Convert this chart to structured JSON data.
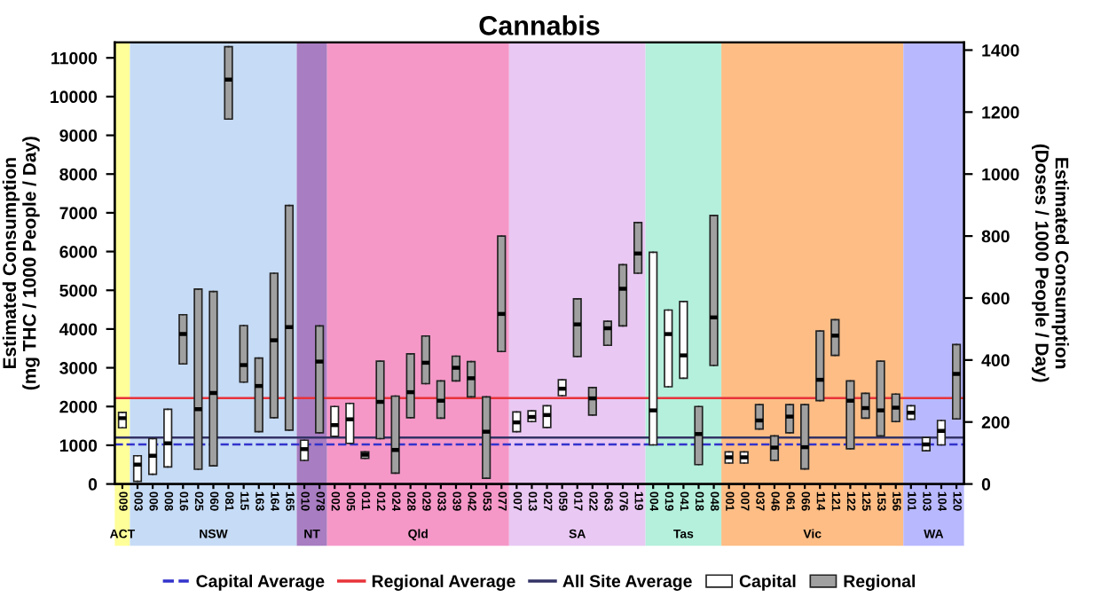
{
  "chart_data": {
    "type": "box",
    "title": "Cannabis",
    "ylabel": "Estimated Consumption\n(mg THC / 1000 People / Day)",
    "y2label": "Estimated Consumption\n(Doses / 1000 People / Day)",
    "categories": [
      "009",
      "003",
      "006",
      "008",
      "016",
      "025",
      "060",
      "081",
      "115",
      "163",
      "164",
      "165",
      "010",
      "078",
      "002",
      "005",
      "011",
      "012",
      "024",
      "028",
      "029",
      "033",
      "039",
      "042",
      "053",
      "077",
      "007",
      "013",
      "027",
      "059",
      "017",
      "022",
      "063",
      "076",
      "119",
      "004",
      "019",
      "041",
      "018",
      "048",
      "001",
      "007",
      "037",
      "046",
      "061",
      "066",
      "114",
      "121",
      "122",
      "125",
      "153",
      "156",
      "101",
      "103",
      "104",
      "120"
    ],
    "ylim": [
      0,
      11400
    ],
    "yticks": [
      0,
      1000,
      2000,
      3000,
      4000,
      5000,
      6000,
      7000,
      8000,
      9000,
      10000,
      11000
    ],
    "y2lim": [
      0,
      1425
    ],
    "y2ticks": [
      0,
      200,
      400,
      600,
      800,
      1000,
      1200,
      1400
    ],
    "grid": false,
    "legend": "bottom",
    "series": [
      {
        "name": "Capital",
        "color": "#ffffff",
        "boxes": [
          {
            "low": 1450,
            "q1": 1450,
            "median": 1700,
            "q3": 1850,
            "high": 1850
          },
          {
            "low": 70,
            "q1": 70,
            "median": 500,
            "q3": 730,
            "high": 730
          },
          {
            "low": 250,
            "q1": 250,
            "median": 730,
            "q3": 1170,
            "high": 1170
          },
          {
            "low": 440,
            "q1": 440,
            "median": 1050,
            "q3": 1930,
            "high": 1930
          },
          null,
          null,
          null,
          null,
          null,
          null,
          null,
          null,
          {
            "low": 610,
            "q1": 610,
            "median": 900,
            "q3": 1130,
            "high": 1130
          },
          null,
          {
            "low": 1230,
            "q1": 1230,
            "median": 1520,
            "q3": 2000,
            "high": 2000
          },
          {
            "low": 1050,
            "q1": 1050,
            "median": 1670,
            "q3": 2080,
            "high": 2080
          },
          null,
          null,
          null,
          null,
          null,
          null,
          null,
          null,
          null,
          null,
          {
            "low": 1350,
            "q1": 1350,
            "median": 1590,
            "q3": 1860,
            "high": 1860
          },
          {
            "low": 1610,
            "q1": 1610,
            "median": 1730,
            "q3": 1890,
            "high": 1890
          },
          {
            "low": 1460,
            "q1": 1460,
            "median": 1780,
            "q3": 2020,
            "high": 2020
          },
          {
            "low": 2280,
            "q1": 2280,
            "median": 2460,
            "q3": 2690,
            "high": 2690
          },
          null,
          null,
          null,
          null,
          null,
          {
            "low": 1010,
            "q1": 1010,
            "median": 1900,
            "q3": 5980,
            "high": 5980
          },
          {
            "low": 2510,
            "q1": 2510,
            "median": 3870,
            "q3": 4490,
            "high": 4490
          },
          {
            "low": 2730,
            "q1": 2730,
            "median": 3320,
            "q3": 4710,
            "high": 4710
          },
          null,
          null,
          {
            "low": 540,
            "q1": 540,
            "median": 690,
            "q3": 830,
            "high": 830
          },
          {
            "low": 540,
            "q1": 540,
            "median": 690,
            "q3": 830,
            "high": 830
          },
          null,
          null,
          null,
          null,
          null,
          null,
          null,
          null,
          null,
          null,
          {
            "low": 1670,
            "q1": 1670,
            "median": 1840,
            "q3": 2020,
            "high": 2020
          },
          {
            "low": 860,
            "q1": 860,
            "median": 1020,
            "q3": 1200,
            "high": 1200
          },
          {
            "low": 1010,
            "q1": 1010,
            "median": 1370,
            "q3": 1640,
            "high": 1640
          },
          null
        ]
      },
      {
        "name": "Regional",
        "color": "#a0a0a0",
        "boxes": [
          null,
          null,
          null,
          null,
          {
            "low": 3100,
            "q1": 3100,
            "median": 3870,
            "q3": 4370,
            "high": 4370
          },
          {
            "low": 380,
            "q1": 380,
            "median": 1930,
            "q3": 5030,
            "high": 5030
          },
          {
            "low": 470,
            "q1": 470,
            "median": 2350,
            "q3": 4970,
            "high": 4970
          },
          {
            "low": 9420,
            "q1": 9420,
            "median": 10440,
            "q3": 11290,
            "high": 11290
          },
          {
            "low": 2630,
            "q1": 2630,
            "median": 3070,
            "q3": 4090,
            "high": 4090
          },
          {
            "low": 1350,
            "q1": 1350,
            "median": 2530,
            "q3": 3250,
            "high": 3250
          },
          {
            "low": 1710,
            "q1": 1710,
            "median": 3710,
            "q3": 5440,
            "high": 5440
          },
          {
            "low": 1390,
            "q1": 1390,
            "median": 4050,
            "q3": 7190,
            "high": 7190
          },
          null,
          {
            "low": 1320,
            "q1": 1320,
            "median": 3160,
            "q3": 4080,
            "high": 4080
          },
          null,
          null,
          {
            "low": 660,
            "q1": 660,
            "median": 760,
            "q3": 830,
            "high": 830
          },
          {
            "low": 1170,
            "q1": 1170,
            "median": 2120,
            "q3": 3170,
            "high": 3170
          },
          {
            "low": 280,
            "q1": 280,
            "median": 880,
            "q3": 2270,
            "high": 2270
          },
          {
            "low": 1710,
            "q1": 1710,
            "median": 2370,
            "q3": 3360,
            "high": 3360
          },
          {
            "low": 2590,
            "q1": 2590,
            "median": 3130,
            "q3": 3820,
            "high": 3820
          },
          {
            "low": 1700,
            "q1": 1700,
            "median": 2150,
            "q3": 2660,
            "high": 2660
          },
          {
            "low": 2660,
            "q1": 2660,
            "median": 3000,
            "q3": 3300,
            "high": 3300
          },
          {
            "low": 2250,
            "q1": 2250,
            "median": 2730,
            "q3": 3160,
            "high": 3160
          },
          {
            "low": 150,
            "q1": 150,
            "median": 1350,
            "q3": 2250,
            "high": 2250
          },
          {
            "low": 3420,
            "q1": 3420,
            "median": 4390,
            "q3": 6400,
            "high": 6400
          },
          null,
          null,
          null,
          null,
          {
            "low": 3290,
            "q1": 3290,
            "median": 4120,
            "q3": 4780,
            "high": 4780
          },
          {
            "low": 1780,
            "q1": 1780,
            "median": 2210,
            "q3": 2490,
            "high": 2490
          },
          {
            "low": 3580,
            "q1": 3580,
            "median": 4020,
            "q3": 4200,
            "high": 4200
          },
          {
            "low": 4080,
            "q1": 4080,
            "median": 5040,
            "q3": 5660,
            "high": 5660
          },
          {
            "low": 5440,
            "q1": 5440,
            "median": 5950,
            "q3": 6750,
            "high": 6750
          },
          null,
          null,
          null,
          {
            "low": 500,
            "q1": 500,
            "median": 1290,
            "q3": 2000,
            "high": 2000
          },
          {
            "low": 3060,
            "q1": 3060,
            "median": 4300,
            "q3": 6930,
            "high": 6930
          },
          null,
          null,
          {
            "low": 1420,
            "q1": 1420,
            "median": 1640,
            "q3": 2050,
            "high": 2050
          },
          {
            "low": 610,
            "q1": 610,
            "median": 940,
            "q3": 1240,
            "high": 1240
          },
          {
            "low": 1320,
            "q1": 1320,
            "median": 1740,
            "q3": 2050,
            "high": 2050
          },
          {
            "low": 390,
            "q1": 390,
            "median": 950,
            "q3": 2050,
            "high": 2050
          },
          {
            "low": 2150,
            "q1": 2150,
            "median": 2690,
            "q3": 3950,
            "high": 3950
          },
          {
            "low": 3320,
            "q1": 3320,
            "median": 3830,
            "q3": 4240,
            "high": 4240
          },
          {
            "low": 910,
            "q1": 910,
            "median": 2150,
            "q3": 2660,
            "high": 2660
          },
          {
            "low": 1700,
            "q1": 1700,
            "median": 1960,
            "q3": 2340,
            "high": 2340
          },
          {
            "low": 1240,
            "q1": 1240,
            "median": 1900,
            "q3": 3170,
            "high": 3170
          },
          {
            "low": 1610,
            "q1": 1610,
            "median": 1970,
            "q3": 2320,
            "high": 2320
          },
          null,
          null,
          null,
          {
            "low": 1680,
            "q1": 1680,
            "median": 2840,
            "q3": 3600,
            "high": 3600
          }
        ]
      }
    ],
    "ref_lines": [
      {
        "axis": "y",
        "value": 1020,
        "label": "Capital Average",
        "color": "#3333cc",
        "line_style": "dashed"
      },
      {
        "axis": "y",
        "value": 2220,
        "label": "Regional Average",
        "color": "#e8333a",
        "line_style": "solid"
      },
      {
        "axis": "y",
        "value": 1200,
        "label": "All Site Average",
        "color": "#333366",
        "line_style": "solid"
      }
    ],
    "bands": [
      {
        "axis": "x",
        "from": "009",
        "to": "009",
        "label": "ACT",
        "color": "#ffff99"
      },
      {
        "axis": "x",
        "from": "003",
        "to": "165",
        "label": "NSW",
        "color": "#c6dbf5"
      },
      {
        "axis": "x",
        "from": "010",
        "to": "078",
        "label": "NT",
        "color": "#a87dc1"
      },
      {
        "axis": "x",
        "from": "002",
        "to": "077",
        "label": "Qld",
        "color": "#f598c8"
      },
      {
        "axis": "x",
        "from": "007",
        "to": "119",
        "label": "SA",
        "color": "#e9c8f3"
      },
      {
        "axis": "x",
        "from": "004",
        "to": "048",
        "label": "Tas",
        "color": "#b4f0dc"
      },
      {
        "axis": "x",
        "from": "001",
        "to": "156",
        "label": "Vic",
        "color": "#fdbd85"
      },
      {
        "axis": "x",
        "from": "101",
        "to": "120",
        "label": "WA",
        "color": "#b8b8ff"
      }
    ]
  }
}
